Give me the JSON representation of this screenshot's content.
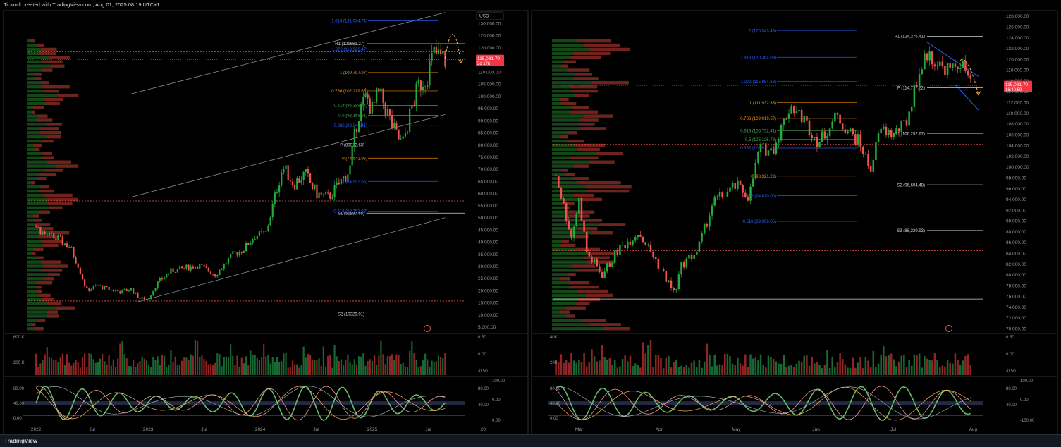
{
  "header": {
    "attribution": "Tickmill created with TradingView.com, Aug 01, 2025 08:19 UTC+1"
  },
  "footer": {
    "brand": "TradingView"
  },
  "colors": {
    "up": "#26a69a",
    "upGreen": "#22ab3a",
    "down": "#ef5350",
    "bg": "#000000",
    "grid": "#1c1f26",
    "priceTag": "#f23645",
    "fibOrange": "#ff9800",
    "fibBlue": "#2962ff",
    "pivot": "#d1d4dc",
    "arrow": "#ffb74d"
  },
  "chart_data": [
    {
      "type": "candlestick",
      "panel": "left",
      "currency": "USD",
      "price_label": "115,081.70",
      "countdown": "3d 17h",
      "y_ticks": [
        "130,000.00",
        "125,000.00",
        "120,000.00",
        "115,000.00",
        "110,000.00",
        "105,000.00",
        "100,000.00",
        "95,000.00",
        "90,000.00",
        "85,000.00",
        "80,000.00",
        "75,000.00",
        "70,000.00",
        "65,000.00",
        "60,000.00",
        "55,000.00",
        "50,000.00",
        "45,000.00",
        "40,000.00",
        "35,000.00",
        "30,000.00",
        "25,000.00",
        "20,000.00",
        "15,000.00",
        "10,000.00",
        "5,000.00"
      ],
      "x_ticks": [
        "2022",
        "Jul",
        "2023",
        "Jul",
        "2024",
        "Jul",
        "2025",
        "Jul",
        "20"
      ],
      "ylim": [
        3200,
        135000
      ],
      "fib_levels": [
        {
          "label": "1.618 (131,084.74)",
          "value": 131084.74,
          "color": "#2962ff"
        },
        {
          "label": "1.272 (119,386.47)",
          "value": 119386.47,
          "color": "#2962ff"
        },
        {
          "label": "1 (109,797.07)",
          "value": 109797.07,
          "color": "#ff9800"
        },
        {
          "label": "0.786 (102,219.68)",
          "value": 102219.68,
          "color": "#ff9800"
        },
        {
          "label": "0.618 (96,289.44)",
          "value": 96289.44,
          "color": "#4caf50"
        },
        {
          "label": "0.5 (92,169.51)",
          "value": 92169.51,
          "color": "#4caf50"
        },
        {
          "label": "0.382 (88,049.41)",
          "value": 88049.41,
          "color": "#2962ff"
        },
        {
          "label": "0 (74,541.95)",
          "value": 74541.95,
          "color": "#ff9800"
        },
        {
          "label": "-0.272 (64,952.55)",
          "value": 64952.55,
          "color": "#2962ff"
        },
        {
          "label": "-0.618 (52,751.33)",
          "value": 52751.33,
          "color": "#2962ff"
        }
      ],
      "pivots": [
        {
          "label": "R1 (121661.27)",
          "value": 121661.27
        },
        {
          "label": "P (80012.63)",
          "value": 80012.63
        },
        {
          "label": "S1 (51897.65)",
          "value": 51897.65
        },
        {
          "label": "S2 (10329.01)",
          "value": 10329.01
        }
      ],
      "dotted_levels": [
        118300,
        56900,
        20200,
        15700
      ],
      "channel": {
        "upper": [
          [
            2022.85,
            101000
          ],
          [
            2025.65,
            134500
          ]
        ],
        "mid": [
          [
            2022.85,
            58500
          ],
          [
            2025.65,
            92500
          ]
        ],
        "lower": [
          [
            2022.9,
            15200
          ],
          [
            2025.65,
            50000
          ]
        ]
      },
      "price_path": [
        [
          2022.0,
          46500
        ],
        [
          2022.08,
          43000
        ],
        [
          2022.2,
          41000
        ],
        [
          2022.3,
          38000
        ],
        [
          2022.38,
          30000
        ],
        [
          2022.45,
          20000
        ],
        [
          2022.55,
          22000
        ],
        [
          2022.65,
          20500
        ],
        [
          2022.75,
          19500
        ],
        [
          2022.85,
          20500
        ],
        [
          2022.92,
          16800
        ],
        [
          2023.0,
          16500
        ],
        [
          2023.08,
          23000
        ],
        [
          2023.2,
          28000
        ],
        [
          2023.3,
          29000
        ],
        [
          2023.45,
          30500
        ],
        [
          2023.6,
          26500
        ],
        [
          2023.75,
          34500
        ],
        [
          2023.85,
          37000
        ],
        [
          2023.95,
          42500
        ],
        [
          2024.05,
          43500
        ],
        [
          2024.15,
          62000
        ],
        [
          2024.2,
          71000
        ],
        [
          2024.3,
          64000
        ],
        [
          2024.4,
          68000
        ],
        [
          2024.5,
          60000
        ],
        [
          2024.6,
          58000
        ],
        [
          2024.7,
          63500
        ],
        [
          2024.8,
          70000
        ],
        [
          2024.87,
          92000
        ],
        [
          2024.95,
          100000
        ],
        [
          2025.0,
          94000
        ],
        [
          2025.05,
          101000
        ],
        [
          2025.1,
          97500
        ],
        [
          2025.2,
          85000
        ],
        [
          2025.27,
          80000
        ],
        [
          2025.35,
          95000
        ],
        [
          2025.42,
          105000
        ],
        [
          2025.48,
          108000
        ],
        [
          2025.55,
          117500
        ],
        [
          2025.6,
          116000
        ],
        [
          2025.65,
          115081
        ]
      ],
      "projection": [
        [
          2025.65,
          115500
        ],
        [
          2025.72,
          131000
        ],
        [
          2025.79,
          114000
        ]
      ],
      "volume_ticks": [
        "600 K",
        "200 K"
      ],
      "volume_axis": [
        "0.50",
        "0.00",
        "-0.50"
      ],
      "oscillator_ticks": [
        "80.00",
        "40.00",
        "0.00"
      ],
      "oscillator_axis": [
        "100.00",
        "80.00",
        "0.00",
        "40.00",
        "0.00"
      ]
    },
    {
      "type": "candlestick",
      "panel": "right",
      "price_label": "115,081.70",
      "countdown": "18:40:59",
      "y_ticks": [
        "128,000.00",
        "126,000.00",
        "124,000.00",
        "122,000.00",
        "120,000.00",
        "118,000.00",
        "116,000.00",
        "114,000.00",
        "112,000.00",
        "110,000.00",
        "108,000.00",
        "106,000.00",
        "104,000.00",
        "102,000.00",
        "100,000.00",
        "98,000.00",
        "96,000.00",
        "94,000.00",
        "92,000.00",
        "90,000.00",
        "88,000.00",
        "86,000.00",
        "84,000.00",
        "82,000.00",
        "80,000.00",
        "78,000.00",
        "76,000.00",
        "74,000.00",
        "72,000.00",
        "70,000.00"
      ],
      "x_ticks": [
        "Mar",
        "Apr",
        "May",
        "Jun",
        "Jul",
        "Aug"
      ],
      "ylim": [
        69500,
        128900
      ],
      "fib_levels": [
        {
          "label": "2 (125,343.48)",
          "value": 125343.48,
          "color": "#2962ff"
        },
        {
          "label": "1.618 (120,364.03)",
          "value": 120364.03,
          "color": "#2962ff"
        },
        {
          "label": "1.272 (115,854.68)",
          "value": 115854.68,
          "color": "#2962ff"
        },
        {
          "label": "1 (111,932.35)",
          "value": 111932.35,
          "color": "#ff9800"
        },
        {
          "label": "0.786 (109,019.57)",
          "value": 109019.57,
          "color": "#ff9800"
        },
        {
          "label": "0.618 (106,732.41)",
          "value": 106732.41,
          "color": "#4caf50"
        },
        {
          "label": "0.5 (105,126.78)",
          "value": 105126.78,
          "color": "#4caf50"
        },
        {
          "label": "0.382 (103,521.15)",
          "value": 103521.15,
          "color": "#2962ff"
        },
        {
          "label": "0 (98,321.22)",
          "value": 98321.22,
          "color": "#ff9800"
        },
        {
          "label": "-0.272 (94,670.00)",
          "value": 94670.0,
          "color": "#2962ff"
        },
        {
          "label": "-0.618 (89,908.05)",
          "value": 89908.05,
          "color": "#2962ff"
        }
      ],
      "pivots": [
        {
          "label": "R1 (124,275.41)",
          "value": 124275.41
        },
        {
          "label": "P (114,717.22)",
          "value": 114717.22
        },
        {
          "label": "S1 (106,252.67)",
          "value": 106252.67
        },
        {
          "label": "S2 (96,694.48)",
          "value": 96694.48
        },
        {
          "label": "S3 (88,229.93)",
          "value": 88229.93
        }
      ],
      "dotted_levels": [
        104200,
        84500
      ],
      "solid_levels": [
        75500
      ],
      "channel": {
        "upper": [
          [
            "Jul 14",
            123200
          ],
          [
            "Aug 03",
            116800
          ]
        ],
        "lower": [
          [
            "Jul 25",
            115300
          ],
          [
            "Aug 03",
            110600
          ]
        ]
      },
      "price_path": [
        [
          "Feb 20",
          98500
        ],
        [
          "Feb 26",
          87000
        ],
        [
          "Mar 01",
          94000
        ],
        [
          "Mar 04",
          84000
        ],
        [
          "Mar 10",
          80000
        ],
        [
          "Mar 16",
          84500
        ],
        [
          "Mar 24",
          88000
        ],
        [
          "Mar 31",
          82500
        ],
        [
          "Apr 07",
          76500
        ],
        [
          "Apr 10",
          82000
        ],
        [
          "Apr 16",
          84500
        ],
        [
          "Apr 22",
          93500
        ],
        [
          "May 01",
          96500
        ],
        [
          "May 06",
          94500
        ],
        [
          "May 10",
          103500
        ],
        [
          "May 15",
          103000
        ],
        [
          "May 22",
          111500
        ],
        [
          "May 27",
          109000
        ],
        [
          "Jun 02",
          104500
        ],
        [
          "Jun 09",
          109500
        ],
        [
          "Jun 12",
          107500
        ],
        [
          "Jun 18",
          104500
        ],
        [
          "Jun 22",
          99500
        ],
        [
          "Jun 26",
          107000
        ],
        [
          "Jul 01",
          106000
        ],
        [
          "Jul 06",
          108200
        ],
        [
          "Jul 10",
          116000
        ],
        [
          "Jul 14",
          121000
        ],
        [
          "Jul 20",
          118500
        ],
        [
          "Jul 24",
          118000
        ],
        [
          "Jul 27",
          119500
        ],
        [
          "Jul 29",
          117800
        ],
        [
          "Jul 31",
          115081
        ]
      ],
      "projection": [
        [
          "Jul 27",
          119800
        ],
        [
          "Jul 30",
          120200
        ],
        [
          "Aug 03",
          113500
        ]
      ],
      "volume_ticks": [
        "40K",
        "20K"
      ],
      "volume_axis": [
        "0.50",
        "0.00",
        "-0.50"
      ],
      "oscillator_ticks": [
        "80.00",
        "40.00",
        "0.00"
      ],
      "oscillator_axis": [
        "100.00",
        "80.00",
        "0.00",
        "40.00",
        "-100.00"
      ]
    }
  ]
}
